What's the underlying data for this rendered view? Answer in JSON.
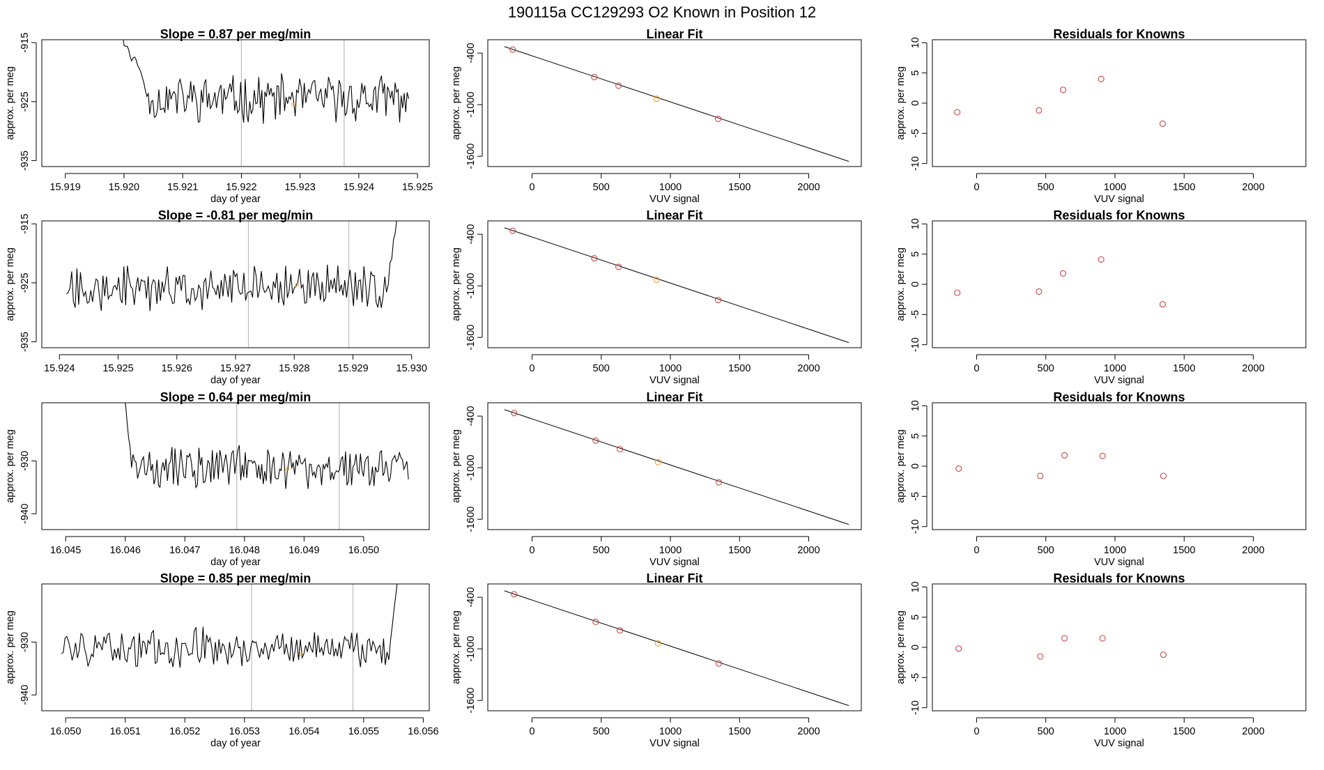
{
  "figure_title": "190115a      CC129293    O2 Known in Position  12",
  "colors": {
    "line": "#000000",
    "point": "#cc4444",
    "highlight": "#f0a030",
    "vline": "#bbbbbb"
  },
  "chart_data": [
    {
      "row": 1,
      "timeseries": {
        "type": "line",
        "title": "Slope =  0.87  per meg/min",
        "xlabel": "day of year",
        "ylabel": "approx. per meg",
        "xlim": [
          15.9186,
          15.9252
        ],
        "ylim": [
          -936,
          -914.5
        ],
        "x_ticks": [
          "15.919",
          "15.920",
          "15.921",
          "15.922",
          "15.923",
          "15.924",
          "15.925"
        ],
        "y_ticks": [
          "-915",
          "-925",
          "-935"
        ],
        "x_start": 15.91995,
        "x_end": 15.92485,
        "start_level": -914,
        "start_drop_x": 15.9204,
        "end_level": -924.5,
        "end_spike": null,
        "base": -924.5,
        "amplitude": 3.3,
        "seed": 11,
        "vlines": [
          15.922,
          15.92375
        ],
        "highlight": [
          15.92288,
          -925.5
        ]
      },
      "linear_fit": {
        "type": "scatter",
        "title": "Linear Fit",
        "xlabel": "VUV signal",
        "ylabel": "approx. per meg",
        "xlim": [
          -320,
          2380
        ],
        "ylim": [
          -1720,
          -245
        ],
        "x_ticks": [
          "0",
          "500",
          "1000",
          "1500",
          "2000"
        ],
        "y_ticks": [
          "-400",
          "-1000",
          "-1600"
        ],
        "points_x": [
          -140,
          450,
          625,
          900,
          1345
        ],
        "points_y": [
          -360,
          -680,
          -780,
          -930,
          -1165
        ],
        "highlight_index": 3,
        "fit_line": [
          [
            -200,
            -325
          ],
          [
            2290,
            -1660
          ]
        ]
      },
      "residuals": {
        "type": "scatter",
        "title": "Residuals for Knowns",
        "xlabel": "VUV signal",
        "ylabel": "approx. per meg",
        "xlim": [
          -320,
          2380
        ],
        "ylim": [
          -10.5,
          10.5
        ],
        "x_ticks": [
          "0",
          "500",
          "1000",
          "1500",
          "2000"
        ],
        "y_ticks": [
          "10",
          "5",
          "0",
          "-5",
          "-10"
        ],
        "points_x": [
          -140,
          450,
          625,
          900,
          1345
        ],
        "points_y": [
          -1.5,
          -1.2,
          2.2,
          4.0,
          -3.4
        ]
      }
    },
    {
      "row": 2,
      "timeseries": {
        "type": "line",
        "title": "Slope =  -0.81  per meg/min",
        "xlabel": "day of year",
        "ylabel": "approx. per meg",
        "xlim": [
          15.9237,
          15.9303
        ],
        "ylim": [
          -936,
          -914.5
        ],
        "x_ticks": [
          "15.924",
          "15.925",
          "15.926",
          "15.927",
          "15.928",
          "15.929",
          "15.930"
        ],
        "y_ticks": [
          "-915",
          "-925",
          "-935"
        ],
        "x_start": 15.92412,
        "x_end": 15.92975,
        "start_level": null,
        "start_drop_x": null,
        "end_level": null,
        "end_spike": -914,
        "base": -925.8,
        "amplitude": 3.1,
        "seed": 27,
        "vlines": [
          15.92722,
          15.92893
        ],
        "highlight": [
          15.92805,
          -925.3
        ]
      },
      "linear_fit": {
        "type": "scatter",
        "title": "Linear Fit",
        "xlabel": "VUV signal",
        "ylabel": "approx. per meg",
        "xlim": [
          -320,
          2380
        ],
        "ylim": [
          -1720,
          -245
        ],
        "x_ticks": [
          "0",
          "500",
          "1000",
          "1500",
          "2000"
        ],
        "y_ticks": [
          "-400",
          "-1000",
          "-1600"
        ],
        "points_x": [
          -140,
          450,
          625,
          900,
          1345
        ],
        "points_y": [
          -360,
          -680,
          -780,
          -930,
          -1165
        ],
        "highlight_index": 3,
        "fit_line": [
          [
            -200,
            -325
          ],
          [
            2290,
            -1660
          ]
        ]
      },
      "residuals": {
        "type": "scatter",
        "title": "Residuals for Knowns",
        "xlabel": "VUV signal",
        "ylabel": "approx. per meg",
        "xlim": [
          -320,
          2380
        ],
        "ylim": [
          -10.5,
          10.5
        ],
        "x_ticks": [
          "0",
          "500",
          "1000",
          "1500",
          "2000"
        ],
        "y_ticks": [
          "10",
          "5",
          "0",
          "-5",
          "-10"
        ],
        "points_x": [
          -140,
          450,
          625,
          900,
          1345
        ],
        "points_y": [
          -1.4,
          -1.2,
          1.8,
          4.1,
          -3.3
        ]
      }
    },
    {
      "row": 3,
      "timeseries": {
        "type": "line",
        "title": "Slope =  0.64  per meg/min",
        "xlabel": "day of year",
        "ylabel": "approx. per meg",
        "xlim": [
          16.0446,
          16.0511
        ],
        "ylim": [
          -943,
          -919
        ],
        "x_ticks": [
          "16.045",
          "16.046",
          "16.047",
          "16.048",
          "16.049",
          "16.050"
        ],
        "y_ticks": [
          "-930",
          "-940"
        ],
        "x_start": 16.04598,
        "x_end": 16.05075,
        "start_level": -918,
        "start_drop_x": 16.0461,
        "end_level": -933.5,
        "end_spike": null,
        "base": -931.2,
        "amplitude": 3.3,
        "seed": 43,
        "vlines": [
          16.04787,
          16.04959
        ],
        "highlight": [
          16.04872,
          -931.5
        ]
      },
      "linear_fit": {
        "type": "scatter",
        "title": "Linear Fit",
        "xlabel": "VUV signal",
        "ylabel": "approx. per meg",
        "xlim": [
          -320,
          2380
        ],
        "ylim": [
          -1720,
          -245
        ],
        "x_ticks": [
          "0",
          "500",
          "1000",
          "1500",
          "2000"
        ],
        "y_ticks": [
          "-400",
          "-1000",
          "-1600"
        ],
        "points_x": [
          -130,
          460,
          635,
          910,
          1350
        ],
        "points_y": [
          -365,
          -685,
          -785,
          -935,
          -1170
        ],
        "highlight_index": 3,
        "fit_line": [
          [
            -200,
            -325
          ],
          [
            2290,
            -1660
          ]
        ]
      },
      "residuals": {
        "type": "scatter",
        "title": "Residuals for Knowns",
        "xlabel": "VUV signal",
        "ylabel": "approx. per meg",
        "xlim": [
          -320,
          2380
        ],
        "ylim": [
          -10.5,
          10.5
        ],
        "x_ticks": [
          "0",
          "500",
          "1000",
          "1500",
          "2000"
        ],
        "y_ticks": [
          "10",
          "5",
          "0",
          "-5",
          "-10"
        ],
        "points_x": [
          -130,
          460,
          635,
          910,
          1350
        ],
        "points_y": [
          -0.4,
          -1.6,
          1.8,
          1.7,
          -1.6
        ]
      }
    },
    {
      "row": 4,
      "timeseries": {
        "type": "line",
        "title": "Slope =  0.85  per meg/min",
        "xlabel": "day of year",
        "ylabel": "approx. per meg",
        "xlim": [
          16.0496,
          16.0561
        ],
        "ylim": [
          -943,
          -919
        ],
        "x_ticks": [
          "16.050",
          "16.051",
          "16.052",
          "16.053",
          "16.054",
          "16.055",
          "16.056"
        ],
        "y_ticks": [
          "-930",
          "-940"
        ],
        "x_start": 16.04993,
        "x_end": 16.05557,
        "start_level": null,
        "start_drop_x": null,
        "end_level": null,
        "end_spike": -918,
        "base": -931.0,
        "amplitude": 3.0,
        "seed": 59,
        "vlines": [
          16.05312,
          16.05482
        ],
        "highlight": [
          16.05395,
          -932.3
        ]
      },
      "linear_fit": {
        "type": "scatter",
        "title": "Linear Fit",
        "xlabel": "VUV signal",
        "ylabel": "approx. per meg",
        "xlim": [
          -320,
          2380
        ],
        "ylim": [
          -1720,
          -245
        ],
        "x_ticks": [
          "0",
          "500",
          "1000",
          "1500",
          "2000"
        ],
        "y_ticks": [
          "-400",
          "-1000",
          "-1600"
        ],
        "points_x": [
          -130,
          460,
          635,
          910,
          1350
        ],
        "points_y": [
          -365,
          -685,
          -785,
          -935,
          -1170
        ],
        "highlight_index": 3,
        "fit_line": [
          [
            -200,
            -325
          ],
          [
            2290,
            -1660
          ]
        ]
      },
      "residuals": {
        "type": "scatter",
        "title": "Residuals for Knowns",
        "xlabel": "VUV signal",
        "ylabel": "approx. per meg",
        "xlim": [
          -320,
          2380
        ],
        "ylim": [
          -10.5,
          10.5
        ],
        "x_ticks": [
          "0",
          "500",
          "1000",
          "1500",
          "2000"
        ],
        "y_ticks": [
          "10",
          "5",
          "0",
          "-5",
          "-10"
        ],
        "points_x": [
          -130,
          460,
          635,
          910,
          1350
        ],
        "points_y": [
          -0.2,
          -1.5,
          1.5,
          1.5,
          -1.2
        ]
      }
    }
  ]
}
